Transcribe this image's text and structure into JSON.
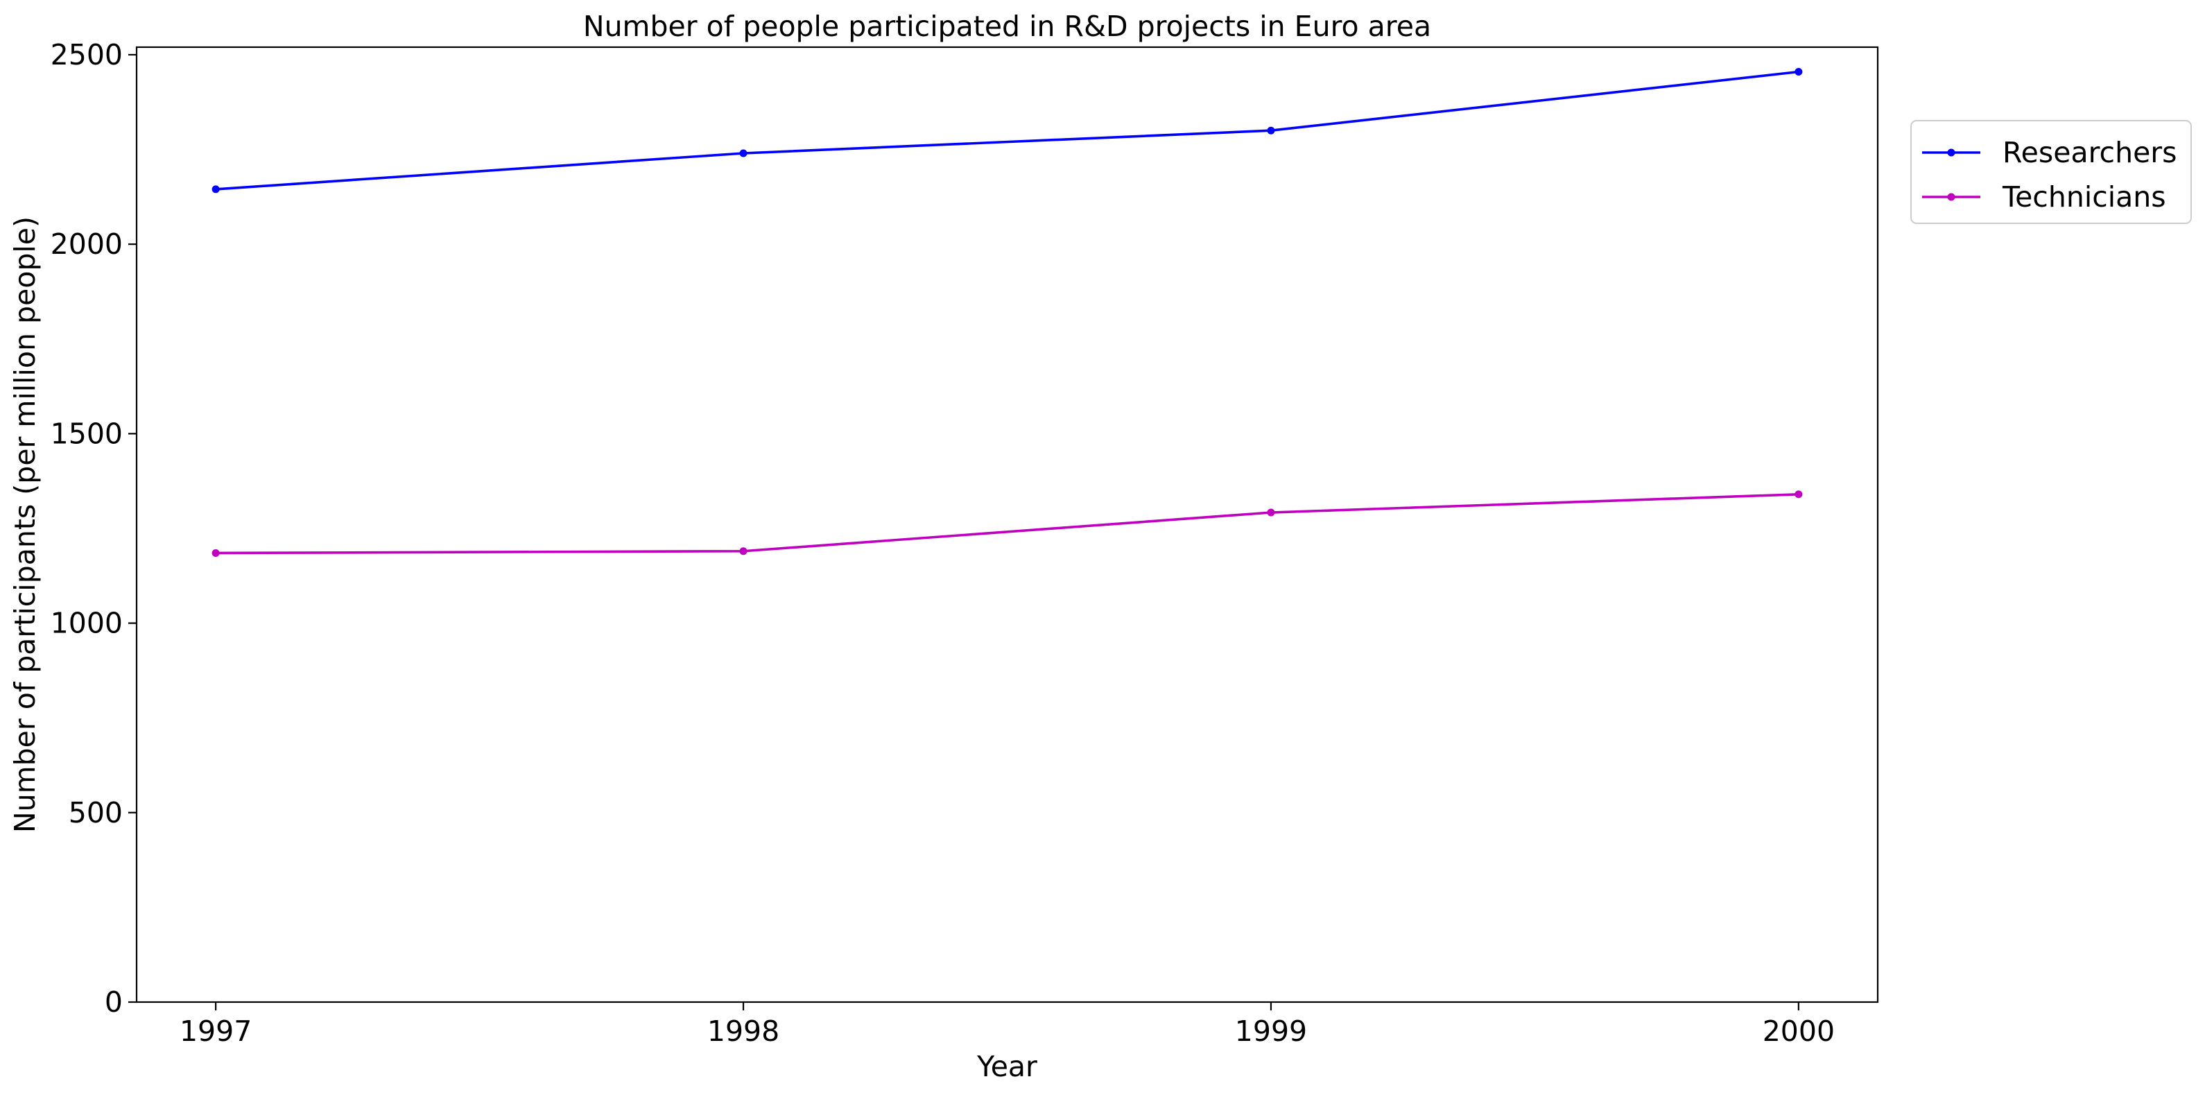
{
  "chart_data": {
    "type": "line",
    "title": "Number of people participated in R&D projects in Euro area",
    "xlabel": "Year",
    "ylabel": "Number of participants (per million people)",
    "x": [
      1997,
      1998,
      1999,
      2000
    ],
    "x_tick_labels": [
      "1997",
      "1998",
      "1999",
      "2000"
    ],
    "y_ticks": [
      0,
      500,
      1000,
      1500,
      2000,
      2500
    ],
    "y_tick_labels": [
      "0",
      "500",
      "1000",
      "1500",
      "2000",
      "2500"
    ],
    "ylim": [
      0,
      2520
    ],
    "xlim": [
      1996.85,
      2000.15
    ],
    "grid": false,
    "legend_position": "outside upper right",
    "series": [
      {
        "name": "Researchers",
        "color": "#0000ff",
        "marker": "circle",
        "values": [
          2145,
          2240,
          2300,
          2455
        ]
      },
      {
        "name": "Technicians",
        "color": "#c000c0",
        "marker": "circle",
        "values": [
          1185,
          1190,
          1292,
          1340
        ]
      }
    ]
  }
}
